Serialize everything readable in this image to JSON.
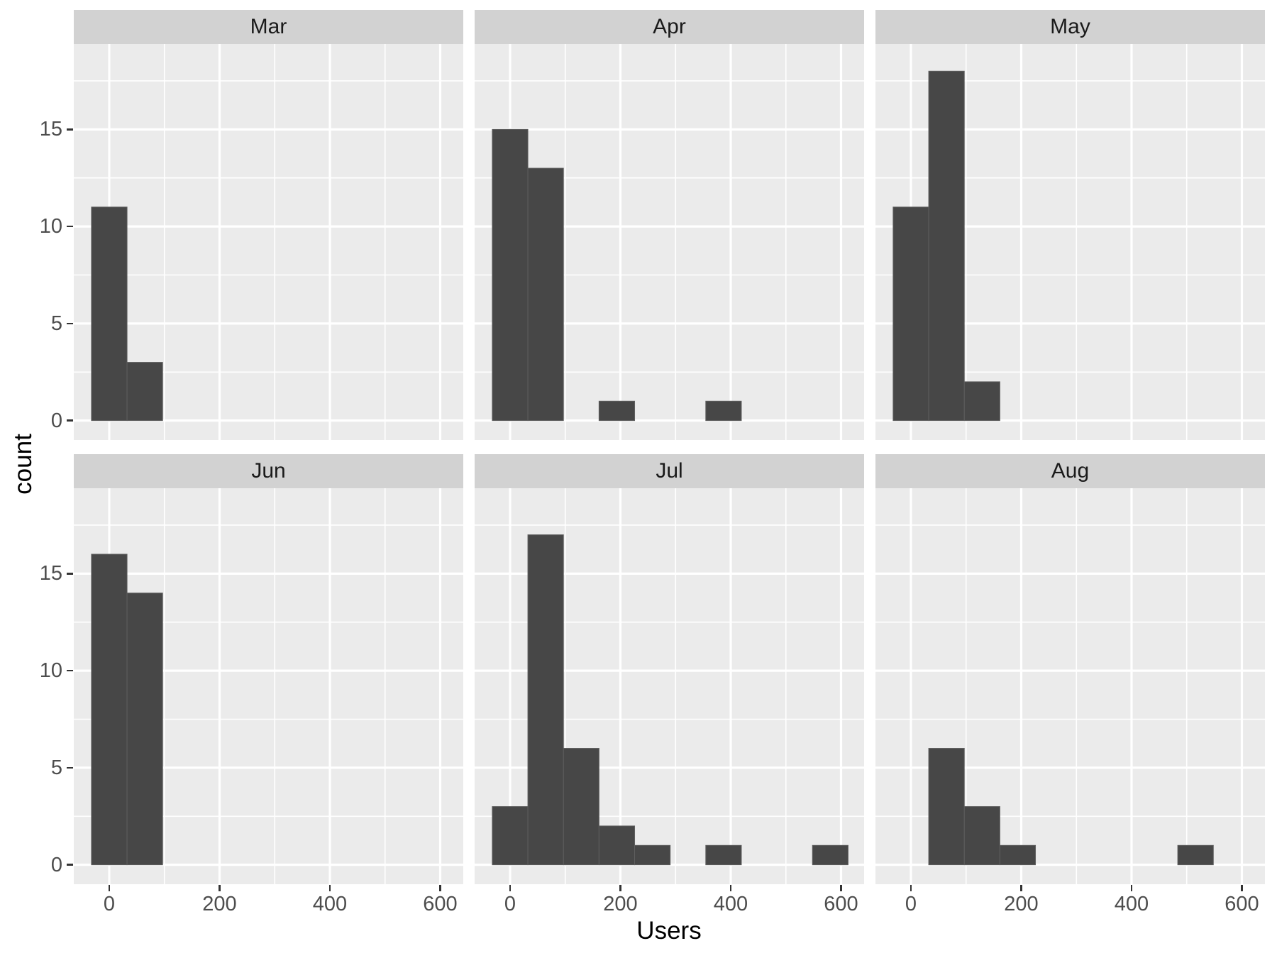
{
  "chart_data": {
    "type": "bar",
    "subtype": "faceted-histogram",
    "title": "",
    "xlabel": "Users",
    "ylabel": "count",
    "legend": "none",
    "grid": "on",
    "facet_layout": [
      [
        "Mar",
        "Apr",
        "May"
      ],
      [
        "Jun",
        "Jul",
        "Aug"
      ]
    ],
    "bin_edges": [
      -32.25,
      32.25,
      96.75,
      161.25,
      225.75,
      290.25,
      354.75,
      419.25,
      483.75,
      548.25,
      612.75
    ],
    "facets": [
      {
        "label": "Mar",
        "counts": [
          11,
          3,
          0,
          0,
          0,
          0,
          0,
          0,
          0,
          0
        ]
      },
      {
        "label": "Apr",
        "counts": [
          15,
          13,
          0,
          1,
          0,
          0,
          1,
          0,
          0,
          0
        ]
      },
      {
        "label": "May",
        "counts": [
          11,
          18,
          2,
          0,
          0,
          0,
          0,
          0,
          0,
          0
        ]
      },
      {
        "label": "Jun",
        "counts": [
          16,
          14,
          0,
          0,
          0,
          0,
          0,
          0,
          0,
          0
        ]
      },
      {
        "label": "Jul",
        "counts": [
          3,
          17,
          6,
          2,
          1,
          0,
          1,
          0,
          0,
          1
        ]
      },
      {
        "label": "Aug",
        "counts": [
          0,
          6,
          3,
          1,
          0,
          0,
          0,
          0,
          1,
          0
        ]
      }
    ],
    "x_ticks": {
      "values": [
        0,
        200,
        400,
        600
      ],
      "labels": [
        "0",
        "200",
        "400",
        "600"
      ]
    },
    "y_ticks": {
      "values": [
        0,
        5,
        10,
        15
      ],
      "labels": [
        "0",
        "5",
        "10",
        "15"
      ]
    },
    "x_minor_gridlines": [
      100,
      300,
      500
    ],
    "y_minor_gridlines": [
      2.5,
      7.5,
      12.5,
      17.5
    ],
    "x_range": [
      -64.3,
      641.8
    ],
    "y_range": [
      -1.0,
      19.4
    ]
  },
  "colors": {
    "figure_background": "#FFFFFF",
    "panel_background": "#EBEBEB",
    "strip_background": "#D2D2D2",
    "strip_text": "#1A1A1A",
    "gridline": "#FFFFFF",
    "bar_fill": "#474747",
    "bar_edge": "#5E5E5E",
    "axis_text": "#4D4D4D",
    "axis_title": "#000000",
    "tick_mark": "#333333"
  }
}
